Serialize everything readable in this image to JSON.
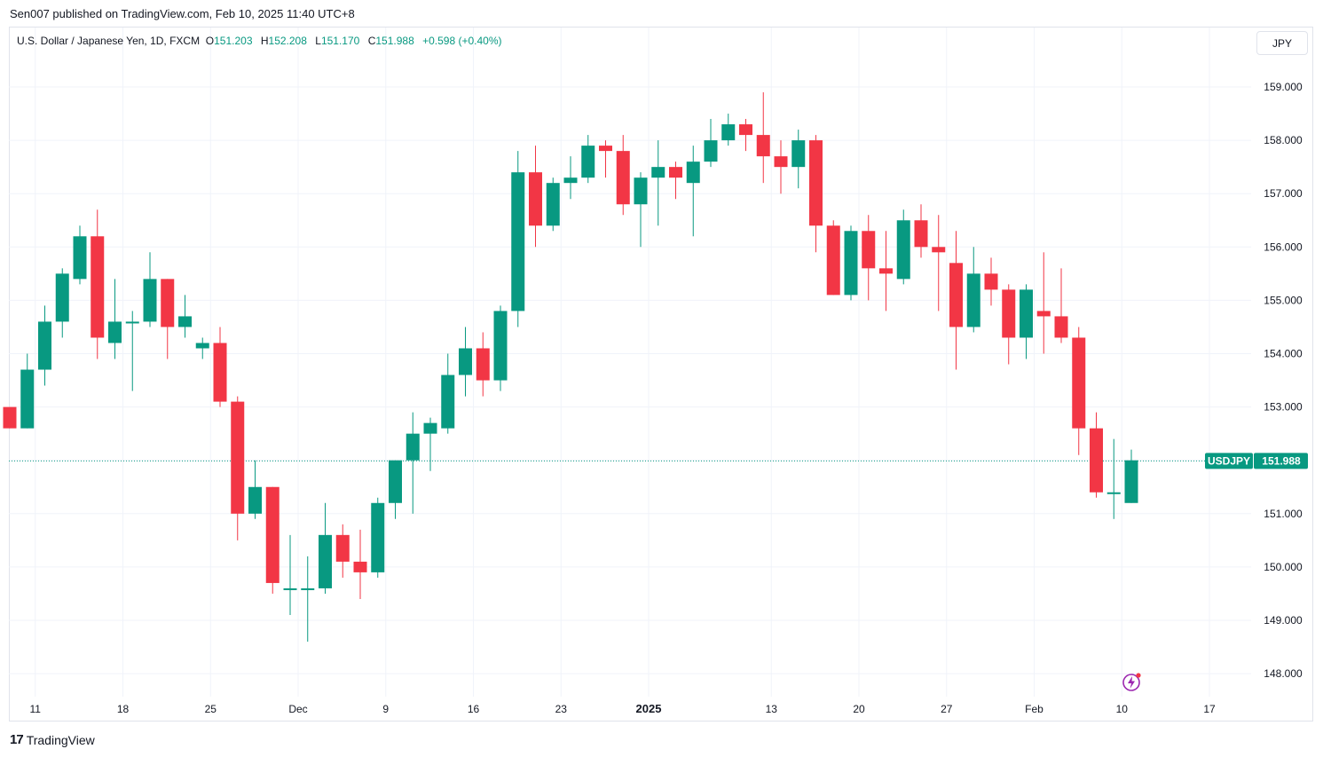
{
  "header": {
    "publisher_line": "Sen007 published on TradingView.com, Feb 10, 2025 11:40 UTC+8"
  },
  "legend": {
    "symbol_text": "U.S. Dollar / Japanese Yen, 1D, FXCM",
    "open_label": "O",
    "open_value": "151.203",
    "high_label": "H",
    "high_value": "152.208",
    "low_label": "L",
    "low_value": "151.170",
    "close_label": "C",
    "close_value": "151.988",
    "change_value": "+0.598 (+0.40%)"
  },
  "currency_button": "JPY",
  "footer": {
    "brand": "TradingView",
    "logo_mark": "17"
  },
  "colors": {
    "up": "#089981",
    "down": "#f23645",
    "grid": "#f0f3fa",
    "text": "#131722",
    "price_line": "#089981"
  },
  "icons": {
    "bolt": "lightning-bolt-icon"
  },
  "chart_data": {
    "type": "candlestick",
    "symbol": "USDJPY",
    "interval": "1D",
    "last_price": 151.988,
    "last_price_label": "151.988",
    "last_symbol_label": "USDJPY",
    "ylim": [
      147.7,
      159.7
    ],
    "y_ticks": [
      "159.000",
      "158.000",
      "157.000",
      "156.000",
      "155.000",
      "154.000",
      "153.000",
      "152.000",
      "151.000",
      "150.000",
      "149.000",
      "148.000"
    ],
    "x_tick_labels": [
      "11",
      "18",
      "25",
      "Dec",
      "9",
      "16",
      "23",
      "2025",
      "13",
      "20",
      "27",
      "Feb",
      "10",
      "17"
    ],
    "x_tick_index": [
      1,
      6,
      11,
      16,
      21,
      26,
      31,
      36,
      43,
      48,
      53,
      58,
      63,
      68
    ],
    "grid": true,
    "candles": [
      [
        153.0,
        153.0,
        152.6,
        152.6
      ],
      [
        152.6,
        154.0,
        152.6,
        153.7
      ],
      [
        153.7,
        154.9,
        153.4,
        154.6
      ],
      [
        154.6,
        155.6,
        154.3,
        155.5
      ],
      [
        155.4,
        156.4,
        155.3,
        156.2
      ],
      [
        156.2,
        156.7,
        153.9,
        154.3
      ],
      [
        154.2,
        155.4,
        153.9,
        154.6
      ],
      [
        154.6,
        154.8,
        153.3,
        154.6
      ],
      [
        154.6,
        155.9,
        154.5,
        155.4
      ],
      [
        155.4,
        155.4,
        153.9,
        154.5
      ],
      [
        154.5,
        155.1,
        154.3,
        154.7
      ],
      [
        154.1,
        154.3,
        153.9,
        154.2
      ],
      [
        154.2,
        154.5,
        153.0,
        153.1
      ],
      [
        153.1,
        153.2,
        150.5,
        151.0
      ],
      [
        151.0,
        152.0,
        150.9,
        151.5
      ],
      [
        151.5,
        151.5,
        149.5,
        149.7
      ],
      [
        149.6,
        150.6,
        149.1,
        149.6
      ],
      [
        149.6,
        150.2,
        148.6,
        149.6
      ],
      [
        149.6,
        151.2,
        149.5,
        150.6
      ],
      [
        150.6,
        150.8,
        149.8,
        150.1
      ],
      [
        150.1,
        150.7,
        149.4,
        149.9
      ],
      [
        149.9,
        151.3,
        149.8,
        151.2
      ],
      [
        151.2,
        152.0,
        150.9,
        152.0
      ],
      [
        152.0,
        152.9,
        151.0,
        152.5
      ],
      [
        152.5,
        152.8,
        151.8,
        152.7
      ],
      [
        152.6,
        154.0,
        152.5,
        153.6
      ],
      [
        153.6,
        154.5,
        153.2,
        154.1
      ],
      [
        154.1,
        154.4,
        153.2,
        153.5
      ],
      [
        153.5,
        154.9,
        153.3,
        154.8
      ],
      [
        154.8,
        157.8,
        154.5,
        157.4
      ],
      [
        157.4,
        157.9,
        156.0,
        156.4
      ],
      [
        156.4,
        157.3,
        156.3,
        157.2
      ],
      [
        157.2,
        157.7,
        156.9,
        157.3
      ],
      [
        157.3,
        158.1,
        157.2,
        157.9
      ],
      [
        157.9,
        158.0,
        157.3,
        157.8
      ],
      [
        157.8,
        158.1,
        156.6,
        156.8
      ],
      [
        156.8,
        157.4,
        156.0,
        157.3
      ],
      [
        157.3,
        158.0,
        156.4,
        157.5
      ],
      [
        157.5,
        157.6,
        156.9,
        157.3
      ],
      [
        157.2,
        157.9,
        156.2,
        157.6
      ],
      [
        157.6,
        158.4,
        157.5,
        158.0
      ],
      [
        158.0,
        158.5,
        157.9,
        158.3
      ],
      [
        158.3,
        158.4,
        157.8,
        158.1
      ],
      [
        158.1,
        158.9,
        157.2,
        157.7
      ],
      [
        157.7,
        158.0,
        157.0,
        157.5
      ],
      [
        157.5,
        158.2,
        157.1,
        158.0
      ],
      [
        158.0,
        158.1,
        155.9,
        156.4
      ],
      [
        156.4,
        156.5,
        155.1,
        155.1
      ],
      [
        155.1,
        156.4,
        155.0,
        156.3
      ],
      [
        156.3,
        156.6,
        155.0,
        155.6
      ],
      [
        155.6,
        156.3,
        154.8,
        155.5
      ],
      [
        155.4,
        156.7,
        155.3,
        156.5
      ],
      [
        156.5,
        156.8,
        155.8,
        156.0
      ],
      [
        156.0,
        156.6,
        154.8,
        155.9
      ],
      [
        155.7,
        156.3,
        153.7,
        154.5
      ],
      [
        154.5,
        156.0,
        154.4,
        155.5
      ],
      [
        155.5,
        155.8,
        154.9,
        155.2
      ],
      [
        155.2,
        155.3,
        153.8,
        154.3
      ],
      [
        154.3,
        155.3,
        153.9,
        155.2
      ],
      [
        154.8,
        155.9,
        154.0,
        154.7
      ],
      [
        154.7,
        155.6,
        154.2,
        154.3
      ],
      [
        154.3,
        154.5,
        152.1,
        152.6
      ],
      [
        152.6,
        152.9,
        151.3,
        151.4
      ],
      [
        151.4,
        152.4,
        150.9,
        151.4
      ],
      [
        151.2,
        152.2,
        151.2,
        152.0
      ]
    ]
  }
}
